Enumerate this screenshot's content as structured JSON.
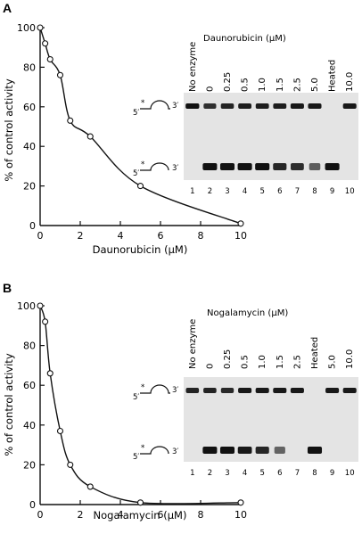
{
  "panels": [
    {
      "letter": "A",
      "plot": {
        "ylabel": "% of control activity",
        "xlabel": "Daunorubicin (μM)",
        "yticks": [
          "0",
          "20",
          "40",
          "60",
          "80",
          "100"
        ],
        "xticks": [
          "0",
          "2",
          "4",
          "6",
          "8",
          "10"
        ]
      },
      "gel": {
        "title": "Daunorubicin (μM)",
        "lane_labels": [
          "No enzyme",
          "0",
          "0.25",
          "0.5",
          "1.0",
          "1.5",
          "2.5",
          "5.0",
          "Heated",
          "10.0"
        ],
        "lane_numbers": [
          "1",
          "2",
          "3",
          "4",
          "5",
          "6",
          "7",
          "8",
          "9",
          "10"
        ],
        "upper_band": [
          1.0,
          0.75,
          0.85,
          0.9,
          0.9,
          0.9,
          0.95,
          0.95,
          0,
          0.95
        ],
        "lower_band": [
          0,
          1.0,
          1.0,
          1.0,
          1.0,
          0.85,
          0.8,
          0.45,
          1.0,
          0
        ],
        "strand_5": "5′",
        "strand_3": "3′"
      }
    },
    {
      "letter": "B",
      "plot": {
        "ylabel": "% of control activity",
        "xlabel": "Nogalamycin (μM)",
        "yticks": [
          "0",
          "20",
          "40",
          "60",
          "80",
          "100"
        ],
        "xticks": [
          "0",
          "2",
          "4",
          "6",
          "8",
          "10"
        ]
      },
      "gel": {
        "title": "Nogalamycin (μM)",
        "lane_labels": [
          "No enzyme",
          "0",
          "0.25",
          "0.5",
          "1.0",
          "1.5",
          "2.5",
          "Heated",
          "5.0",
          "10.0"
        ],
        "lane_numbers": [
          "1",
          "2",
          "3",
          "4",
          "5",
          "6",
          "7",
          "8",
          "9",
          "10"
        ],
        "upper_band": [
          0.85,
          0.85,
          0.8,
          0.95,
          0.95,
          0.95,
          0.95,
          0,
          0.95,
          0.95
        ],
        "lower_band": [
          0,
          1.0,
          1.0,
          0.95,
          0.85,
          0.4,
          0,
          1.0,
          0,
          0
        ],
        "strand_5": "5′",
        "strand_3": "3′"
      }
    }
  ],
  "chart_data": [
    {
      "type": "scatter",
      "title": "",
      "xlabel": "Daunorubicin (μM)",
      "ylabel": "% of control activity",
      "xlim": [
        0,
        10
      ],
      "ylim": [
        0,
        100
      ],
      "x": [
        0,
        0.25,
        0.5,
        1.0,
        1.5,
        2.5,
        5.0,
        10.0
      ],
      "y": [
        100,
        92,
        84,
        76,
        53,
        45,
        20,
        1
      ],
      "fit_curve": true
    },
    {
      "type": "scatter",
      "title": "",
      "xlabel": "Nogalamycin (μM)",
      "ylabel": "% of control activity",
      "xlim": [
        0,
        10
      ],
      "ylim": [
        0,
        100
      ],
      "x": [
        0,
        0.25,
        0.5,
        1.0,
        1.5,
        2.5,
        5.0,
        10.0
      ],
      "y": [
        100,
        92,
        66,
        37,
        20,
        9,
        1,
        1
      ],
      "fit_curve": true
    }
  ]
}
